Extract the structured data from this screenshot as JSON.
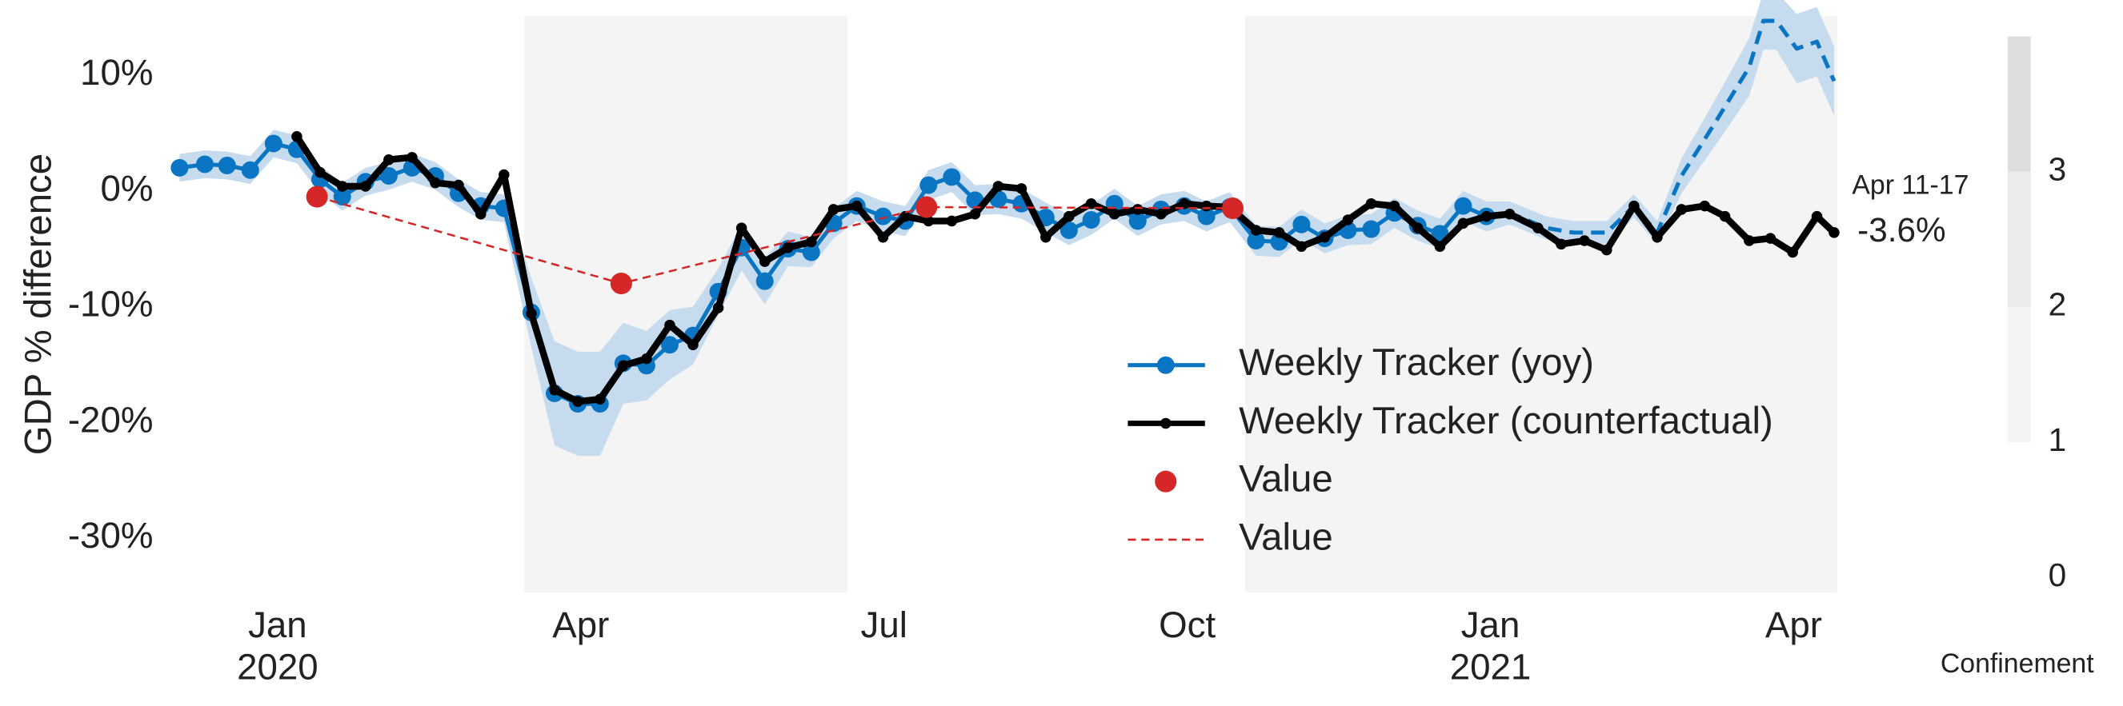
{
  "chart_data": {
    "type": "line",
    "ylabel": "GDP % difference",
    "xlim": [
      -1.07,
      15.43
    ],
    "ylim": [
      -34.7,
      15.1
    ],
    "xticks": [
      {
        "value": 0,
        "label": "Jan"
      },
      {
        "value": 3,
        "label": "Apr"
      },
      {
        "value": 6,
        "label": "Jul"
      },
      {
        "value": 9,
        "label": "Oct"
      },
      {
        "value": 12,
        "label": "Jan"
      },
      {
        "value": 15,
        "label": "Apr"
      }
    ],
    "xtick_years": [
      {
        "value": 0,
        "label": "2020"
      },
      {
        "value": 12,
        "label": "2021"
      }
    ],
    "yticks": [
      {
        "value": 10,
        "label": "10%"
      },
      {
        "value": 0,
        "label": "0%"
      },
      {
        "value": -10,
        "label": "-10%"
      },
      {
        "value": -20,
        "label": "-20%"
      },
      {
        "value": -30,
        "label": "-30%"
      }
    ],
    "legend": "lower center",
    "series": [
      {
        "name": "Weekly Tracker (yoy)",
        "color": "#0a75c2",
        "band_color": "#c6dcee",
        "kind": "line",
        "marker": true,
        "dashed_after": 11.96,
        "x": [
          -0.97,
          -0.72,
          -0.5,
          -0.27,
          -0.04,
          0.19,
          0.42,
          0.64,
          0.87,
          1.1,
          1.33,
          1.56,
          1.79,
          2.01,
          2.24,
          2.51,
          2.74,
          2.97,
          3.19,
          3.42,
          3.65,
          3.88,
          4.11,
          4.36,
          4.59,
          4.82,
          5.05,
          5.28,
          5.5,
          5.73,
          5.99,
          6.21,
          6.44,
          6.67,
          6.9,
          7.13,
          7.36,
          7.6,
          7.83,
          8.05,
          8.28,
          8.51,
          8.74,
          8.97,
          9.19,
          9.42,
          9.68,
          9.91,
          10.13,
          10.36,
          10.59,
          10.82,
          11.05,
          11.28,
          11.5,
          11.73,
          11.96,
          12.19,
          12.55,
          12.82,
          13.15,
          13.42,
          13.65,
          13.89,
          14.23,
          14.56,
          14.7,
          14.83,
          15.03,
          15.23,
          15.4
        ],
        "values": [
          2.0,
          2.3,
          2.2,
          1.8,
          4.1,
          3.6,
          1.0,
          -0.5,
          0.8,
          1.3,
          2.0,
          1.3,
          -0.2,
          -1.3,
          -1.5,
          -10.5,
          -17.5,
          -18.4,
          -18.4,
          -14.9,
          -15.1,
          -13.3,
          -12.5,
          -8.7,
          -4.9,
          -7.8,
          -5.0,
          -5.3,
          -2.8,
          -1.3,
          -2.2,
          -2.6,
          0.5,
          1.2,
          -0.8,
          -0.7,
          -1.1,
          -2.3,
          -3.4,
          -2.5,
          -1.1,
          -2.6,
          -1.6,
          -1.3,
          -2.2,
          -1.4,
          -4.3,
          -4.4,
          -2.9,
          -4.1,
          -3.4,
          -3.3,
          -1.9,
          -3.0,
          -3.7,
          -1.3,
          -2.2,
          -1.9,
          -3.2,
          -3.6,
          -3.6,
          -1.3,
          -3.6,
          1.3,
          6.0,
          10.7,
          14.7,
          14.7,
          12.3,
          12.9,
          9.5
        ],
        "errors": [
          1.2,
          1.2,
          1.2,
          1.2,
          1.2,
          1.2,
          1.2,
          1.2,
          1.2,
          1.2,
          1.2,
          1.2,
          1.2,
          1.2,
          1.2,
          3,
          4.5,
          4.5,
          4.5,
          3.5,
          3,
          3,
          2.5,
          2,
          2,
          2,
          1.5,
          1.3,
          1.3,
          1.3,
          1.3,
          1.3,
          1.3,
          1.3,
          1.3,
          1.3,
          1.3,
          1.3,
          1.3,
          1.3,
          1.3,
          1.3,
          1.3,
          1.3,
          1.3,
          1.3,
          1.3,
          1.3,
          1.3,
          1.3,
          1.3,
          1.3,
          1.3,
          1.3,
          1.3,
          1.3,
          1.3,
          1,
          1,
          1,
          1,
          1,
          1,
          1.5,
          2,
          2.5,
          2.5,
          2.5,
          3,
          3,
          3
        ]
      },
      {
        "name": "Weekly Tracker (counterfactual)",
        "color": "#000000",
        "kind": "line",
        "marker": true,
        "x": [
          0.19,
          0.42,
          0.64,
          0.87,
          1.1,
          1.33,
          1.56,
          1.79,
          2.01,
          2.24,
          2.51,
          2.74,
          2.97,
          3.19,
          3.42,
          3.65,
          3.88,
          4.11,
          4.36,
          4.59,
          4.82,
          5.05,
          5.28,
          5.5,
          5.73,
          5.99,
          6.21,
          6.44,
          6.67,
          6.9,
          7.13,
          7.36,
          7.6,
          7.83,
          8.05,
          8.28,
          8.51,
          8.74,
          8.97,
          9.19,
          9.42,
          9.68,
          9.91,
          10.13,
          10.36,
          10.59,
          10.82,
          11.05,
          11.28,
          11.5,
          11.73,
          11.96,
          12.19,
          12.47,
          12.7,
          12.93,
          13.15,
          13.42,
          13.65,
          13.89,
          14.12,
          14.32,
          14.56,
          14.77,
          14.99,
          15.23,
          15.4
        ],
        "values": [
          4.7,
          1.6,
          0.4,
          0.4,
          2.7,
          2.9,
          0.7,
          0.5,
          -2.0,
          1.4,
          -10.6,
          -17.2,
          -18.2,
          -18.0,
          -15.1,
          -14.5,
          -11.6,
          -13.3,
          -10.1,
          -3.2,
          -6.1,
          -4.9,
          -4.4,
          -1.6,
          -1.3,
          -4.0,
          -2.2,
          -2.6,
          -2.6,
          -2.0,
          0.4,
          0.2,
          -4.0,
          -2.2,
          -1.1,
          -2.0,
          -1.6,
          -2.0,
          -1.1,
          -1.3,
          -1.4,
          -3.4,
          -3.6,
          -4.8,
          -4.0,
          -2.5,
          -1.1,
          -1.3,
          -3.2,
          -4.8,
          -2.8,
          -2.2,
          -2.0,
          -3.2,
          -4.6,
          -4.3,
          -5.1,
          -1.3,
          -4.0,
          -1.6,
          -1.3,
          -2.2,
          -4.3,
          -4.1,
          -5.3,
          -2.2,
          -3.6
        ]
      },
      {
        "name": "Value",
        "color": "#d62728",
        "kind": "scatter",
        "x": [
          0.39,
          3.4,
          6.42,
          9.45
        ],
        "values": [
          -0.5,
          -8.0,
          -1.4,
          -1.5
        ]
      },
      {
        "name": "Value",
        "color": "#d62728",
        "kind": "line",
        "dashed": true,
        "x": [
          0.39,
          3.4,
          6.42,
          9.45
        ],
        "values": [
          -0.5,
          -8.0,
          -1.4,
          -1.5
        ]
      }
    ],
    "annotations": [
      {
        "text": "Apr 11-17"
      },
      {
        "text": "-3.6%"
      }
    ],
    "confinement": {
      "label": "Confinement",
      "lim": [
        0,
        4
      ],
      "ticks": [
        0,
        1,
        2,
        3
      ],
      "levels": [
        {
          "from": 1,
          "to": 2,
          "color": "#f4f4f4"
        },
        {
          "from": 2,
          "to": 3,
          "color": "#ebebeb"
        },
        {
          "from": 3,
          "to": 4,
          "color": "#dddddd"
        }
      ],
      "regions": [
        {
          "start": 2.44,
          "end": 5.64,
          "level": 1
        },
        {
          "start": 9.57,
          "end": 15.43,
          "level": 1
        }
      ]
    }
  }
}
